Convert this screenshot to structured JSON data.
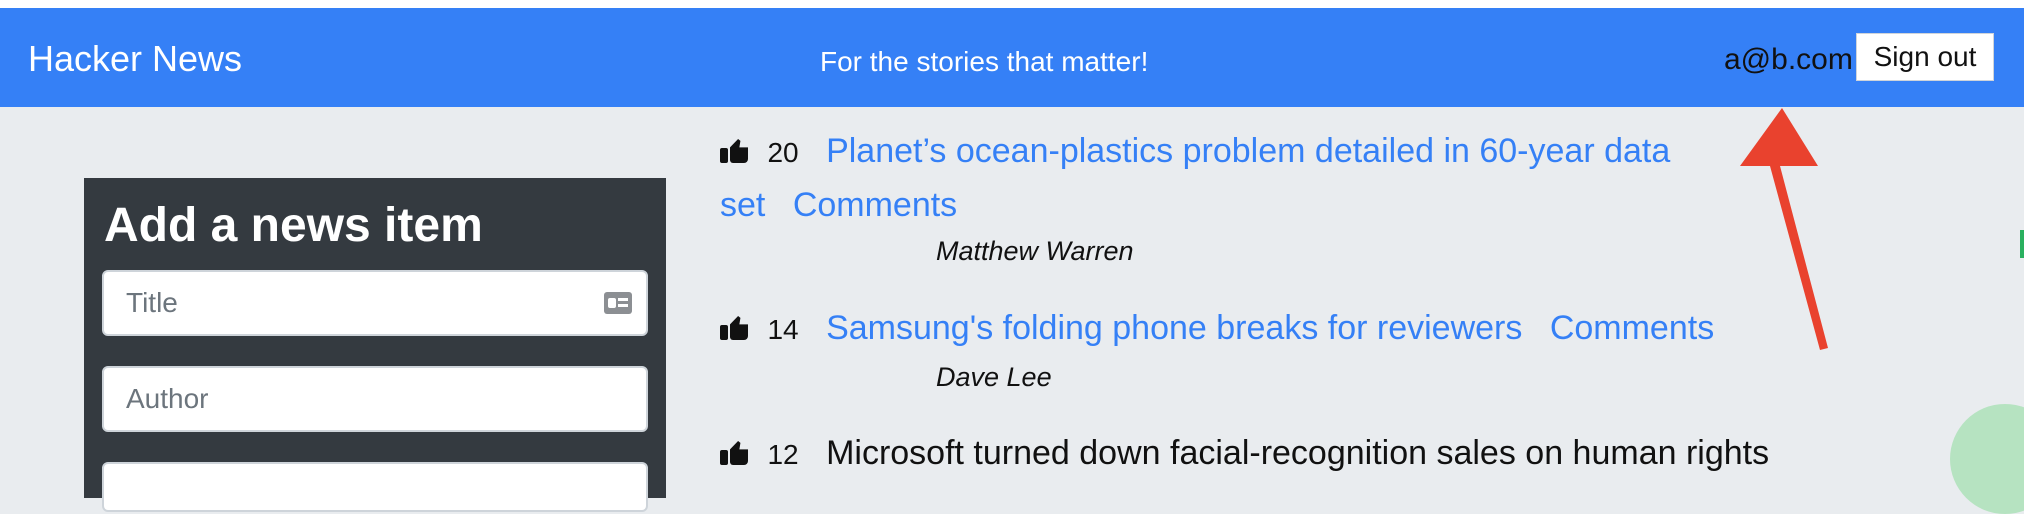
{
  "navbar": {
    "brand": "Hacker News",
    "tagline": "For the stories that matter!",
    "email": "a@b.com",
    "signout": "Sign out"
  },
  "panel": {
    "title": "Add a news item",
    "title_placeholder": "Title",
    "author_placeholder": "Author"
  },
  "stories": [
    {
      "votes": "20",
      "title_line1": "Planet’s ocean-plastics problem detailed in 60-year data",
      "title_line2": "set",
      "comments": "Comments",
      "author": "Matthew Warren"
    },
    {
      "votes": "14",
      "title": "Samsung's folding phone breaks for reviewers",
      "comments": "Comments",
      "author": "Dave Lee"
    },
    {
      "votes": "12",
      "title": "Microsoft turned down facial-recognition sales on human rights"
    }
  ],
  "colors": {
    "nav": "#3580f6",
    "panel": "#343a40",
    "link": "#3580f6",
    "background": "#e9ecef",
    "annotation_arrow": "#e9422e"
  },
  "icons": {
    "vote": "thumbs-up-icon",
    "title_field": "id-card-icon"
  }
}
